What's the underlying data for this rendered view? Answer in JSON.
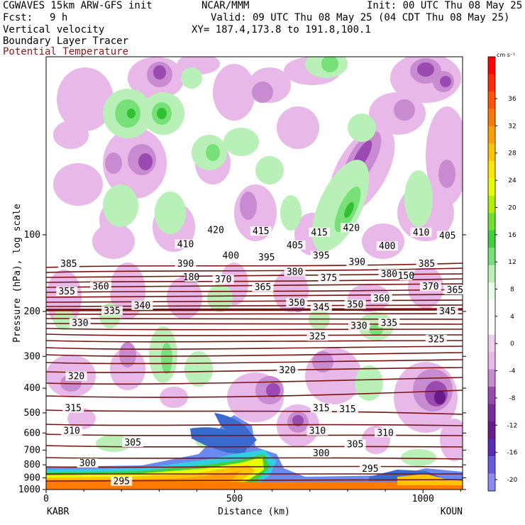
{
  "header": {
    "model": "CGWAVES 15km ARW-GFS init",
    "fcst_label": "Fcst:",
    "fcst_value": "9 h",
    "field1": "Vertical velocity",
    "field2": "Boundary Layer Tracer",
    "field3": "Potential Temperature",
    "center": "NCAR/MMM",
    "init": "Init: 00 UTC Thu 08 May 25",
    "valid": "Valid: 09 UTC Thu 08 May 25 (04 CDT Thu 08 May 25)",
    "xy": "XY= 187.4,173.8 to 191.8,100.1"
  },
  "colors": {
    "theta": "#7a1212",
    "field3_text": "#8b1a1a",
    "pink_light": "#e8b8e8",
    "pink_mid": "#c88ad0",
    "purple": "#9a4ab0",
    "purple_dark": "#6a1a8a",
    "green_light": "#b8f0b8",
    "green_mid": "#78e078",
    "green_dark": "#30c030"
  },
  "chart_data": {
    "type": "heatmap",
    "xlabel": "Distance (km)",
    "ylabel": "Pressure (hPa), log scale",
    "xlim": [
      0,
      1105
    ],
    "ylim": [
      1000,
      20
    ],
    "y_log": true,
    "x_ticks": [
      {
        "value": 0,
        "label": "0"
      },
      {
        "value": 500,
        "label": "500"
      },
      {
        "value": 1000,
        "label": "1000"
      }
    ],
    "y_ticks": [
      {
        "value": 100,
        "label": "100"
      },
      {
        "value": 200,
        "label": "200"
      },
      {
        "value": 300,
        "label": "300"
      },
      {
        "value": 400,
        "label": "400"
      },
      {
        "value": 500,
        "label": "500"
      },
      {
        "value": 600,
        "label": "600"
      },
      {
        "value": 700,
        "label": "700"
      },
      {
        "value": 800,
        "label": "800"
      },
      {
        "value": 900,
        "label": "900"
      },
      {
        "value": 1000,
        "label": "1000"
      }
    ],
    "start_station": "KABR",
    "end_station": "KOUN",
    "colorbar": {
      "unit": "cm s⁻¹",
      "tick_labels": [
        "36",
        "32",
        "28",
        "24",
        "20",
        "16",
        "12",
        "8",
        "4",
        "0",
        "-4",
        "-8",
        "-12",
        "-16",
        "-20"
      ],
      "colors": [
        "#ff0000",
        "#ff2a00",
        "#ff5500",
        "#ff7a00",
        "#ff9f00",
        "#ffc400",
        "#ffe600",
        "#e6ff00",
        "#b0f000",
        "#70e030",
        "#40d040",
        "#78e078",
        "#b8f0b8",
        "#e8ffe8",
        "#ffffff",
        "#ffffff",
        "#f0d0f0",
        "#e8b8e8",
        "#c88ad0",
        "#9a4ab0",
        "#7a2a9a",
        "#6a1a8a",
        "#5a2ab8",
        "#6a5ae0",
        "#8a8af0"
      ]
    },
    "theta_labels": [
      {
        "x": 450,
        "p": 96,
        "t": "420"
      },
      {
        "x": 570,
        "p": 97,
        "t": "415"
      },
      {
        "x": 725,
        "p": 98,
        "t": "415"
      },
      {
        "x": 810,
        "p": 94,
        "t": "420"
      },
      {
        "x": 995,
        "p": 98,
        "t": "410"
      },
      {
        "x": 1065,
        "p": 101,
        "t": "405"
      },
      {
        "x": 370,
        "p": 109,
        "t": "410"
      },
      {
        "x": 660,
        "p": 110,
        "t": "405"
      },
      {
        "x": 905,
        "p": 111,
        "t": "400"
      },
      {
        "x": 490,
        "p": 121,
        "t": "400"
      },
      {
        "x": 585,
        "p": 123,
        "t": "395"
      },
      {
        "x": 730,
        "p": 121,
        "t": "395"
      },
      {
        "x": 825,
        "p": 128,
        "t": "390"
      },
      {
        "x": 60,
        "p": 130,
        "t": "385"
      },
      {
        "x": 370,
        "p": 130,
        "t": "390"
      },
      {
        "x": 1010,
        "p": 130,
        "t": "385"
      },
      {
        "x": 660,
        "p": 140,
        "t": "380"
      },
      {
        "x": 910,
        "p": 143,
        "t": "380"
      },
      {
        "x": 750,
        "p": 148,
        "t": "375"
      },
      {
        "x": 470,
        "p": 150,
        "t": "370"
      },
      {
        "x": 1020,
        "p": 160,
        "t": "370"
      },
      {
        "x": 145,
        "p": 160,
        "t": "360"
      },
      {
        "x": 575,
        "p": 161,
        "t": "365"
      },
      {
        "x": 1085,
        "p": 165,
        "t": "365"
      },
      {
        "x": 55,
        "p": 167,
        "t": "355"
      },
      {
        "x": 890,
        "p": 178,
        "t": "360"
      },
      {
        "x": 665,
        "p": 185,
        "t": "350"
      },
      {
        "x": 820,
        "p": 188,
        "t": "350"
      },
      {
        "x": 255,
        "p": 190,
        "t": "340"
      },
      {
        "x": 730,
        "p": 193,
        "t": "345"
      },
      {
        "x": 175,
        "p": 199,
        "t": "335"
      },
      {
        "x": 1065,
        "p": 200,
        "t": "345"
      },
      {
        "x": 90,
        "p": 222,
        "t": "330"
      },
      {
        "x": 910,
        "p": 222,
        "t": "335"
      },
      {
        "x": 830,
        "p": 228,
        "t": "330"
      },
      {
        "x": 720,
        "p": 251,
        "t": "325"
      },
      {
        "x": 1035,
        "p": 258,
        "t": "325"
      },
      {
        "x": 640,
        "p": 340,
        "t": "320"
      },
      {
        "x": 80,
        "p": 360,
        "t": "320"
      },
      {
        "x": 72,
        "p": 480,
        "t": "315"
      },
      {
        "x": 730,
        "p": 480,
        "t": "315"
      },
      {
        "x": 800,
        "p": 485,
        "t": "315"
      },
      {
        "x": 68,
        "p": 590,
        "t": "310"
      },
      {
        "x": 720,
        "p": 590,
        "t": "310"
      },
      {
        "x": 900,
        "p": 600,
        "t": "310"
      },
      {
        "x": 230,
        "p": 655,
        "t": "305"
      },
      {
        "x": 820,
        "p": 665,
        "t": "305"
      },
      {
        "x": 730,
        "p": 720,
        "t": "300"
      },
      {
        "x": 110,
        "p": 790,
        "t": "300"
      },
      {
        "x": 860,
        "p": 830,
        "t": "295"
      },
      {
        "x": 200,
        "p": 930,
        "t": "295"
      }
    ],
    "tropopause_labels": [
      {
        "x": 385,
        "p": 147,
        "t": "180"
      },
      {
        "x": 955,
        "p": 145,
        "t": "150"
      }
    ]
  }
}
